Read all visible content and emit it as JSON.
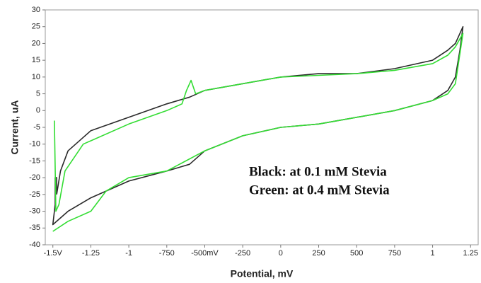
{
  "chart_data": {
    "type": "line",
    "x_label": "Potential, mV",
    "y_label": "Current, uA",
    "annotations": [
      "Black: at 0.1 mM Stevia",
      "Green: at 0.4 mM Stevia"
    ],
    "xlim": [
      -1550,
      1300
    ],
    "ylim": [
      -40,
      30
    ],
    "xticks": [
      {
        "value": -1500,
        "label": "-1.5V"
      },
      {
        "value": -1250,
        "label": "-1.25"
      },
      {
        "value": -1000,
        "label": "-1"
      },
      -750,
      {
        "value": -500,
        "label": "-500mV"
      },
      -250,
      0,
      250,
      500,
      750,
      {
        "value": 1000,
        "label": "1"
      },
      {
        "value": 1250,
        "label": "1.25"
      }
    ],
    "yticks": [
      30,
      25,
      20,
      15,
      10,
      5,
      0,
      -5,
      -10,
      -15,
      -20,
      -25,
      -30,
      -35,
      -40
    ],
    "grid": false,
    "series": [
      {
        "color": "#2a2a2a",
        "x": [
          -1475,
          -1450,
          -1400,
          -1300,
          -1250,
          -1000,
          -750,
          -600,
          -500,
          -250,
          0,
          250,
          500,
          750,
          1000,
          1100,
          1150,
          1200,
          1180,
          1150,
          1100,
          1000,
          750,
          500,
          250,
          0,
          -250,
          -500,
          -600,
          -750,
          -1000,
          -1250,
          -1400,
          -1500,
          -1485,
          -1485,
          -1475,
          -1475
        ],
        "values": [
          -25,
          -18,
          -12,
          -8,
          -6,
          -2,
          2,
          4,
          6,
          8,
          10,
          11,
          11,
          12.5,
          15,
          18,
          20,
          25,
          18,
          10,
          6,
          3,
          0,
          -2,
          -4,
          -5,
          -7.5,
          -12,
          -16,
          -18,
          -21,
          -26,
          -30,
          -34,
          -28,
          -20,
          -20,
          -25
        ]
      },
      {
        "color": "#33dd33",
        "x": [
          -1490,
          -1480,
          -1460,
          -1420,
          -1300,
          -1000,
          -750,
          -650,
          -620,
          -590,
          -560,
          -500,
          -250,
          0,
          250,
          500,
          750,
          1000,
          1100,
          1150,
          1200,
          1180,
          1150,
          1100,
          1000,
          750,
          500,
          250,
          0,
          -250,
          -500,
          -750,
          -1000,
          -1150,
          -1250,
          -1400,
          -1500
        ],
        "values": [
          -3,
          -30,
          -28,
          -18,
          -10,
          -4,
          0,
          2,
          6,
          9,
          5,
          6,
          8,
          10,
          10.5,
          11,
          12,
          14,
          16.5,
          19,
          23,
          17,
          8,
          5,
          3,
          0,
          -2,
          -4,
          -5,
          -7.5,
          -12,
          -18,
          -20,
          -24,
          -30,
          -33,
          -36
        ]
      }
    ]
  }
}
